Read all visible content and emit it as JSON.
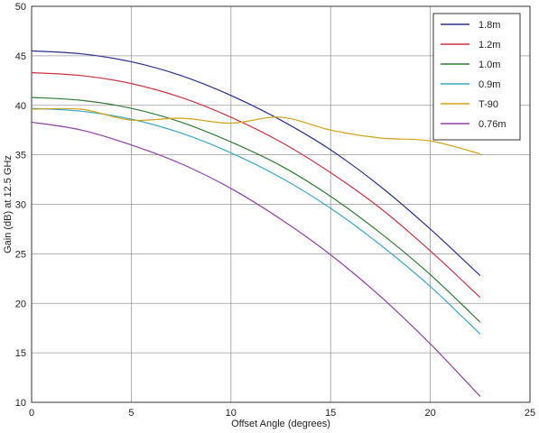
{
  "chart_data": {
    "type": "line",
    "title": "",
    "xlabel": "Offset Angle (degrees)",
    "ylabel": "Gain (dB) at 12.5 GHz",
    "xlim": [
      0,
      25
    ],
    "ylim": [
      10,
      50
    ],
    "xticks": [
      0,
      5,
      10,
      15,
      20,
      25
    ],
    "yticks": [
      10,
      15,
      20,
      25,
      30,
      35,
      40,
      45,
      50
    ],
    "grid": true,
    "legend_position": "top-right",
    "x": [
      0,
      2.5,
      5,
      7.5,
      10,
      12.5,
      15,
      17.5,
      20,
      22.5
    ],
    "series": [
      {
        "name": "1.8m",
        "color": "#2b2f8f",
        "values": [
          45.5,
          45.2,
          44.4,
          43.0,
          41.0,
          38.5,
          35.5,
          31.8,
          27.5,
          22.8
        ]
      },
      {
        "name": "1.2m",
        "color": "#cc3344",
        "values": [
          43.3,
          43.0,
          42.2,
          40.8,
          38.8,
          36.3,
          33.2,
          29.6,
          25.3,
          20.6
        ]
      },
      {
        "name": "1.0m",
        "color": "#2e7d32",
        "values": [
          40.8,
          40.5,
          39.7,
          38.3,
          36.3,
          33.9,
          30.8,
          27.1,
          22.9,
          18.1
        ]
      },
      {
        "name": "0.9m",
        "color": "#3aa8c8",
        "values": [
          39.7,
          39.4,
          38.6,
          37.2,
          35.2,
          32.7,
          29.6,
          25.9,
          21.7,
          16.9
        ]
      },
      {
        "name": "T-90",
        "color": "#d4a017",
        "values": [
          39.6,
          39.6,
          38.5,
          38.7,
          38.2,
          38.8,
          37.5,
          36.7,
          36.4,
          35.1
        ]
      },
      {
        "name": "0.76m",
        "color": "#8e3fa8",
        "values": [
          38.3,
          37.5,
          36.0,
          34.1,
          31.6,
          28.5,
          24.9,
          20.7,
          15.9,
          10.6
        ]
      }
    ]
  }
}
